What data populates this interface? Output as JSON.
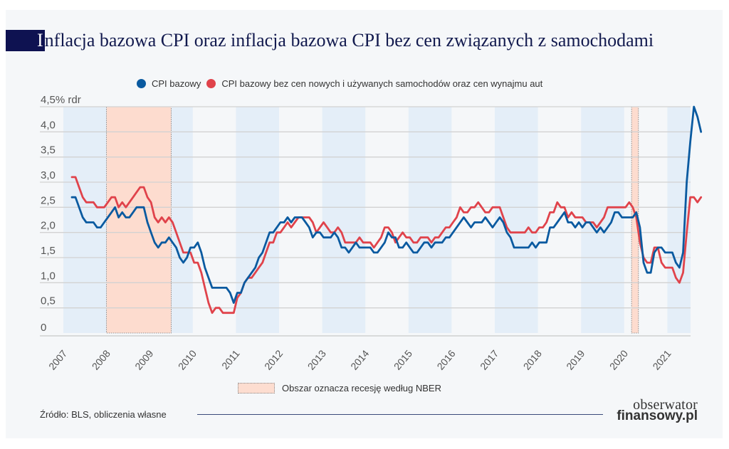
{
  "title": {
    "initial": "I",
    "rest": "nflacja bazowa CPI oraz inflacja bazowa CPI bez cen związanych z samochodami"
  },
  "legend": [
    {
      "label": "CPI bazowy",
      "color": "#0a5aa0"
    },
    {
      "label": "CPI bazowy bez cen nowych i używanych samochodów oraz cen wynajmu aut",
      "color": "#e0434b"
    }
  ],
  "recession_legend": "Obszar oznacza recesję według NBER",
  "source": "Źródło: BLS, obliczenia własne",
  "logo": {
    "line1": "obserwator",
    "line2": "finansowy.pl"
  },
  "chart_data": {
    "type": "line",
    "title": "Inflacja bazowa CPI oraz inflacja bazowa CPI bez cen związanych z samochodami",
    "ylabel": "% rdr",
    "ylim": [
      0,
      4.5
    ],
    "y_ticks": [
      "0",
      "0,5",
      "1,0",
      "1,5",
      "2,0",
      "2,5",
      "3,0",
      "3,5",
      "4,0",
      "4,5% rdr"
    ],
    "y_tick_values": [
      0,
      0.5,
      1.0,
      1.5,
      2.0,
      2.5,
      3.0,
      3.5,
      4.0,
      4.5
    ],
    "x_ticks": [
      "2007",
      "2008",
      "2009",
      "2010",
      "2011",
      "2012",
      "2013",
      "2014",
      "2015",
      "2016",
      "2017",
      "2018",
      "2019",
      "2020",
      "2021"
    ],
    "x_start": 2007.0,
    "x_step_months": 1,
    "grid": true,
    "legend_position": "top",
    "recessions": [
      [
        2008.0,
        2009.5
      ],
      [
        2020.17,
        2020.33
      ]
    ],
    "shaded_year_bands": [
      2007,
      2009.5,
      2011,
      2013,
      2015,
      2017,
      2019,
      2021
    ],
    "series": [
      {
        "name": "CPI bazowy",
        "color": "#0a5aa0",
        "values": [
          2.7,
          2.7,
          2.5,
          2.3,
          2.2,
          2.2,
          2.2,
          2.1,
          2.1,
          2.2,
          2.3,
          2.4,
          2.5,
          2.3,
          2.4,
          2.3,
          2.3,
          2.4,
          2.5,
          2.5,
          2.5,
          2.2,
          2.0,
          1.8,
          1.7,
          1.8,
          1.8,
          1.9,
          1.8,
          1.7,
          1.5,
          1.4,
          1.5,
          1.7,
          1.7,
          1.8,
          1.6,
          1.3,
          1.1,
          0.9,
          0.9,
          0.9,
          0.9,
          0.9,
          0.8,
          0.6,
          0.8,
          0.8,
          1.0,
          1.1,
          1.2,
          1.3,
          1.5,
          1.6,
          1.8,
          2.0,
          2.0,
          2.1,
          2.2,
          2.2,
          2.3,
          2.2,
          2.3,
          2.3,
          2.3,
          2.2,
          2.1,
          1.9,
          2.0,
          2.0,
          1.9,
          1.9,
          1.9,
          2.0,
          1.9,
          1.7,
          1.7,
          1.6,
          1.7,
          1.8,
          1.7,
          1.7,
          1.7,
          1.7,
          1.6,
          1.6,
          1.7,
          1.8,
          2.0,
          1.9,
          1.9,
          1.7,
          1.7,
          1.8,
          1.7,
          1.6,
          1.6,
          1.7,
          1.8,
          1.8,
          1.7,
          1.8,
          1.8,
          1.8,
          1.9,
          1.9,
          2.0,
          2.1,
          2.2,
          2.3,
          2.2,
          2.1,
          2.2,
          2.2,
          2.2,
          2.3,
          2.2,
          2.1,
          2.2,
          2.3,
          2.2,
          2.0,
          1.9,
          1.7,
          1.7,
          1.7,
          1.7,
          1.7,
          1.8,
          1.7,
          1.8,
          1.8,
          1.8,
          2.1,
          2.1,
          2.2,
          2.3,
          2.4,
          2.2,
          2.2,
          2.1,
          2.2,
          2.1,
          2.2,
          2.2,
          2.1,
          2.0,
          2.1,
          2.0,
          2.1,
          2.2,
          2.4,
          2.4,
          2.3,
          2.3,
          2.3,
          2.3,
          2.4,
          2.1,
          1.4,
          1.2,
          1.2,
          1.6,
          1.7,
          1.7,
          1.6,
          1.6,
          1.6,
          1.4,
          1.3,
          1.6,
          3.0,
          3.8,
          4.5,
          4.3,
          4.0
        ]
      },
      {
        "name": "CPI bazowy bez cen nowych i używanych samochodów oraz cen wynajmu aut",
        "color": "#e0434b",
        "values": [
          3.1,
          3.1,
          2.9,
          2.7,
          2.6,
          2.6,
          2.6,
          2.5,
          2.5,
          2.5,
          2.6,
          2.7,
          2.7,
          2.5,
          2.6,
          2.5,
          2.6,
          2.7,
          2.8,
          2.9,
          2.9,
          2.7,
          2.6,
          2.3,
          2.2,
          2.3,
          2.2,
          2.3,
          2.2,
          2.0,
          1.8,
          1.6,
          1.6,
          1.6,
          1.4,
          1.4,
          1.2,
          0.9,
          0.6,
          0.4,
          0.5,
          0.5,
          0.4,
          0.4,
          0.4,
          0.4,
          0.7,
          0.8,
          1.0,
          1.1,
          1.1,
          1.2,
          1.3,
          1.4,
          1.6,
          1.8,
          1.8,
          2.0,
          2.0,
          2.1,
          2.2,
          2.1,
          2.2,
          2.3,
          2.3,
          2.3,
          2.3,
          2.2,
          2.0,
          2.1,
          2.2,
          2.1,
          2.0,
          2.0,
          2.1,
          2.0,
          1.8,
          1.8,
          1.8,
          1.8,
          1.9,
          1.8,
          1.8,
          1.8,
          1.7,
          1.8,
          1.9,
          2.1,
          2.1,
          2.0,
          1.8,
          1.9,
          2.0,
          1.9,
          1.9,
          1.8,
          1.8,
          1.9,
          1.9,
          1.9,
          1.8,
          1.9,
          1.9,
          2.0,
          2.1,
          2.1,
          2.2,
          2.3,
          2.5,
          2.4,
          2.4,
          2.5,
          2.5,
          2.6,
          2.5,
          2.4,
          2.4,
          2.5,
          2.5,
          2.5,
          2.3,
          2.1,
          2.0,
          2.0,
          2.0,
          2.0,
          2.0,
          2.1,
          2.0,
          2.0,
          2.1,
          2.1,
          2.2,
          2.4,
          2.4,
          2.6,
          2.5,
          2.5,
          2.3,
          2.4,
          2.3,
          2.3,
          2.3,
          2.2,
          2.2,
          2.2,
          2.1,
          2.2,
          2.3,
          2.5,
          2.5,
          2.5,
          2.5,
          2.5,
          2.5,
          2.6,
          2.5,
          2.3,
          1.8,
          1.5,
          1.4,
          1.4,
          1.7,
          1.7,
          1.4,
          1.3,
          1.3,
          1.3,
          1.1,
          1.0,
          1.2,
          2.0,
          2.7,
          2.7,
          2.6,
          2.7
        ]
      }
    ]
  }
}
